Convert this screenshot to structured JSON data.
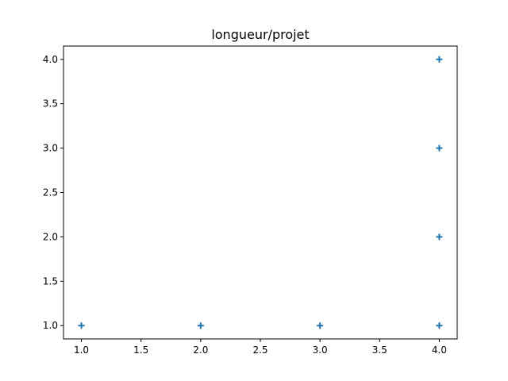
{
  "chart_data": {
    "type": "scatter",
    "title": "longueur/projet",
    "xlabel": "",
    "ylabel": "",
    "marker": "plus",
    "color": "#1f77b4",
    "xlim": [
      0.85,
      4.15
    ],
    "ylim": [
      0.85,
      4.15
    ],
    "xticks": [
      1.0,
      1.5,
      2.0,
      2.5,
      3.0,
      3.5,
      4.0
    ],
    "yticks": [
      1.0,
      1.5,
      2.0,
      2.5,
      3.0,
      3.5,
      4.0
    ],
    "xtick_labels": [
      "1.0",
      "1.5",
      "2.0",
      "2.5",
      "3.0",
      "3.5",
      "4.0"
    ],
    "ytick_labels": [
      "1.0",
      "1.5",
      "2.0",
      "2.5",
      "3.0",
      "3.5",
      "4.0"
    ],
    "grid": false,
    "legend": "none",
    "points": [
      {
        "x": 1,
        "y": 1
      },
      {
        "x": 2,
        "y": 1
      },
      {
        "x": 3,
        "y": 1
      },
      {
        "x": 4,
        "y": 1
      },
      {
        "x": 4,
        "y": 2
      },
      {
        "x": 4,
        "y": 3
      },
      {
        "x": 4,
        "y": 4
      }
    ]
  }
}
